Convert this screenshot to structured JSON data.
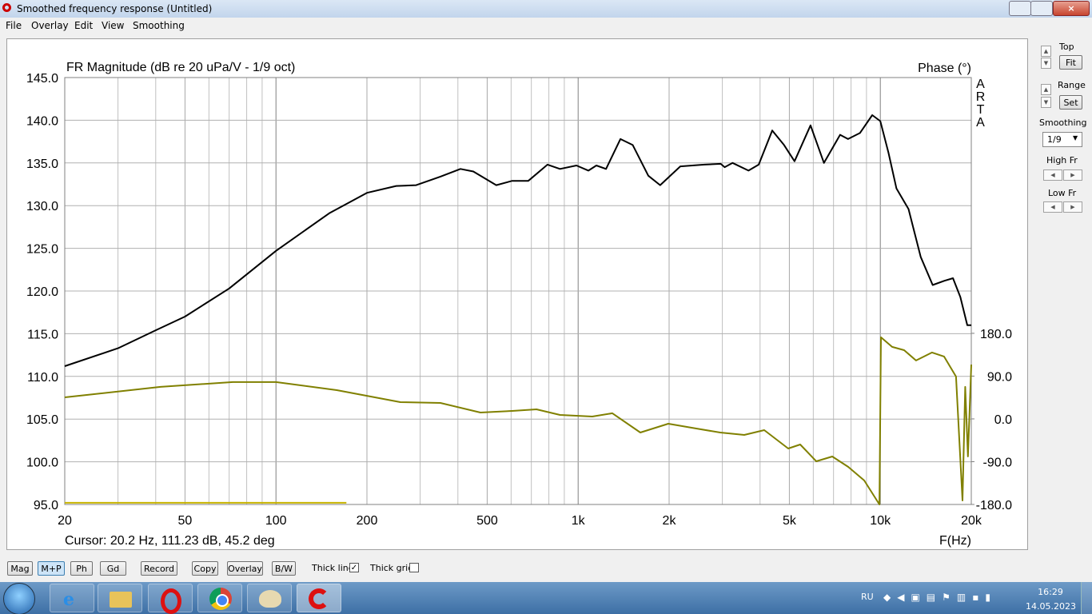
{
  "window": {
    "title": "Smoothed frequency response (Untitled)"
  },
  "menu": [
    "File",
    "Overlay",
    "Edit",
    "View",
    "Smoothing"
  ],
  "chart_data": {
    "type": "line",
    "title": "FR Magnitude (dB re 20 uPa/V - 1/9 oct)",
    "y2label": "Phase (°)",
    "watermark": "ARTA",
    "cursor": "Cursor: 20.2 Hz, 111.23 dB, 45.2 deg",
    "xlabel": "F(Hz)",
    "xlog": true,
    "grid": true,
    "xlim": [
      20,
      20000
    ],
    "xticks": [
      20,
      50,
      100,
      200,
      500,
      {
        "value": 1000,
        "label": "1k"
      },
      {
        "value": 2000,
        "label": "2k"
      },
      {
        "value": 5000,
        "label": "5k"
      },
      {
        "value": 10000,
        "label": "10k"
      },
      {
        "value": 20000,
        "label": "20k"
      }
    ],
    "xminor": [
      30,
      40,
      60,
      70,
      80,
      90,
      300,
      400,
      600,
      700,
      800,
      900,
      3000,
      4000,
      6000,
      7000,
      8000,
      9000
    ],
    "ylim": [
      95,
      145
    ],
    "yticks": [
      {
        "value": 95,
        "label": "95.0"
      },
      {
        "value": 100,
        "label": "100.0"
      },
      {
        "value": 105,
        "label": "105.0"
      },
      {
        "value": 110,
        "label": "110.0"
      },
      {
        "value": 115,
        "label": "115.0"
      },
      {
        "value": 120,
        "label": "120.0"
      },
      {
        "value": 125,
        "label": "125.0"
      },
      {
        "value": 130,
        "label": "130.0"
      },
      {
        "value": 135,
        "label": "135.0"
      },
      {
        "value": 140,
        "label": "140.0"
      },
      {
        "value": 145,
        "label": "145.0"
      }
    ],
    "y2lim": [
      -180,
      718
    ],
    "y2ticks": [
      {
        "value": -180,
        "label": "-180.0"
      },
      {
        "value": -90,
        "label": "-90.0"
      },
      {
        "value": 0,
        "label": "0.0"
      },
      {
        "value": 90,
        "label": "90.0"
      },
      {
        "value": 180,
        "label": "180.0"
      }
    ],
    "series": [
      {
        "color": "#000000",
        "x": [
          20,
          30,
          40,
          50,
          70,
          100,
          150,
          200,
          250,
          291,
          350,
          408,
          450,
          536,
          605,
          684,
          792,
          871,
          987,
          1082,
          1149,
          1237,
          1380,
          1516,
          1707,
          1868,
          2178,
          2618,
          2962,
          3054,
          3244,
          3662,
          3960,
          4387,
          4801,
          5200,
          5876,
          6510,
          7360,
          7820,
          8560,
          9400,
          10000,
          10640,
          11310,
          12400,
          13600,
          14900,
          16300,
          17400,
          18400,
          19400,
          20000
        ],
        "values": [
          111.2,
          113.3,
          115.4,
          117.0,
          120.3,
          124.7,
          129.1,
          131.5,
          132.3,
          132.4,
          133.4,
          134.3,
          134.0,
          132.4,
          132.9,
          132.9,
          134.8,
          134.3,
          134.7,
          134.1,
          134.7,
          134.3,
          137.8,
          137.1,
          133.5,
          132.4,
          134.6,
          134.8,
          134.9,
          134.5,
          135.0,
          134.1,
          134.8,
          138.8,
          137.1,
          135.2,
          139.4,
          135.0,
          138.3,
          137.8,
          138.5,
          140.6,
          139.9,
          136.2,
          132.0,
          129.6,
          124.0,
          120.7,
          121.2,
          121.5,
          119.3,
          116.0,
          116.0
        ]
      },
      {
        "color": "#808000",
        "axis": "y2",
        "x": [
          20,
          41.5,
          72,
          100,
          159,
          258,
          350,
          475,
          605,
          728,
          871,
          1114,
          1298,
          1606,
          1988,
          2460,
          2952,
          3546,
          4130,
          4958,
          5432,
          6138,
          6932,
          7830,
          8846,
          9930,
          10050,
          10940,
          11990,
          13130,
          14830,
          16250,
          17800,
          18700,
          19100,
          19500,
          20000
        ],
        "values": [
          45.4,
          67.3,
          77.4,
          77.4,
          60.5,
          35.3,
          33.6,
          13.4,
          16.8,
          20.2,
          8.4,
          5.0,
          11.8,
          -28.6,
          -10.1,
          -20.2,
          -28.6,
          -33.7,
          -23.6,
          -62.3,
          -53.9,
          -89.2,
          -79.1,
          -101.0,
          -129.5,
          -180,
          171.6,
          151.4,
          144.6,
          122.8,
          139.6,
          131.2,
          89.1,
          -171.6,
          67.3,
          -79.0,
          114.3
        ]
      },
      {
        "color": "#c8b400",
        "x": [
          20,
          171
        ],
        "values": [
          95.2,
          95.2
        ]
      }
    ]
  },
  "side_panel": {
    "top": "Top",
    "fit": "Fit",
    "range": "Range",
    "set": "Set",
    "smoothing": "Smoothing",
    "smoothing_value": "1/9",
    "high_fr": "High Fr",
    "low_fr": "Low Fr"
  },
  "buttons": [
    "Mag",
    "M+P",
    "Ph",
    "Gd",
    "Record",
    "Copy",
    "Overlay",
    "B/W"
  ],
  "checkboxes": [
    {
      "label": "Thick line",
      "checked": true
    },
    {
      "label": "Thick grid",
      "checked": false
    }
  ],
  "taskbar": {
    "language": "RU",
    "time": "16:29",
    "date": "14.05.2023"
  }
}
